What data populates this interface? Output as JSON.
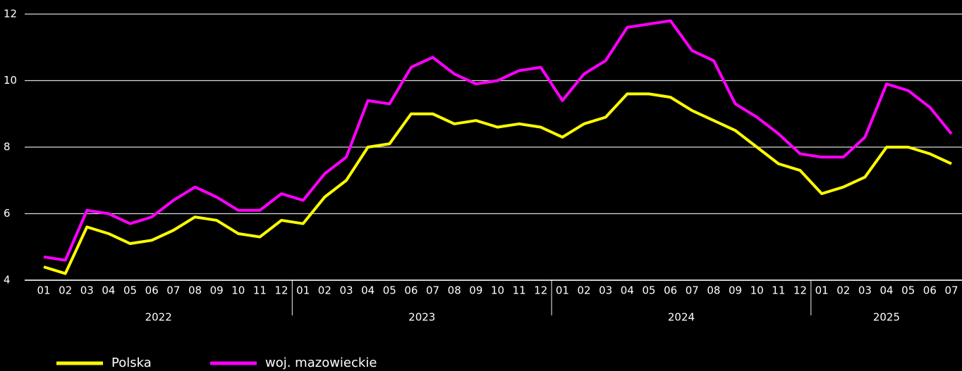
{
  "chart_data": {
    "type": "line",
    "categories": [
      "01",
      "02",
      "03",
      "04",
      "05",
      "06",
      "07",
      "08",
      "09",
      "10",
      "11",
      "12",
      "01",
      "02",
      "03",
      "04",
      "05",
      "06",
      "07",
      "08",
      "09",
      "10",
      "11",
      "12",
      "01",
      "02",
      "03",
      "04",
      "05",
      "06",
      "07",
      "08",
      "09",
      "10",
      "11",
      "12",
      "01",
      "02",
      "03",
      "04",
      "05",
      "06",
      "07"
    ],
    "category_groups": [
      "2022",
      "2023",
      "2024",
      "2025"
    ],
    "series": [
      {
        "name": "Polska",
        "color": "#ffff00",
        "values": [
          4.4,
          4.2,
          5.6,
          5.4,
          5.1,
          5.2,
          5.5,
          5.9,
          5.8,
          5.4,
          5.3,
          5.8,
          5.7,
          6.5,
          7.0,
          8.0,
          8.1,
          9.0,
          9.0,
          8.7,
          8.8,
          8.6,
          8.7,
          8.6,
          8.3,
          8.7,
          8.9,
          9.6,
          9.6,
          9.5,
          9.1,
          8.8,
          8.5,
          8.0,
          7.5,
          7.3,
          6.6,
          6.8,
          7.1,
          8.0,
          8.0,
          7.8,
          7.5
        ]
      },
      {
        "name": "woj. mazowieckie",
        "color": "#ff00ff",
        "values": [
          4.7,
          4.6,
          6.1,
          6.0,
          5.7,
          5.9,
          6.4,
          6.8,
          6.5,
          6.1,
          6.1,
          6.6,
          6.4,
          7.2,
          7.7,
          9.4,
          9.3,
          10.4,
          10.7,
          10.2,
          9.9,
          10.0,
          10.3,
          10.4,
          9.4,
          10.2,
          10.6,
          11.6,
          11.7,
          11.8,
          10.9,
          10.6,
          9.3,
          8.9,
          8.4,
          7.8,
          7.7,
          7.7,
          8.3,
          9.9,
          9.7,
          9.2,
          8.4
        ]
      }
    ],
    "ylim": [
      4,
      12
    ],
    "yticks": [
      4,
      6,
      8,
      10,
      12
    ],
    "grid": true,
    "legend": "bottom-left"
  }
}
